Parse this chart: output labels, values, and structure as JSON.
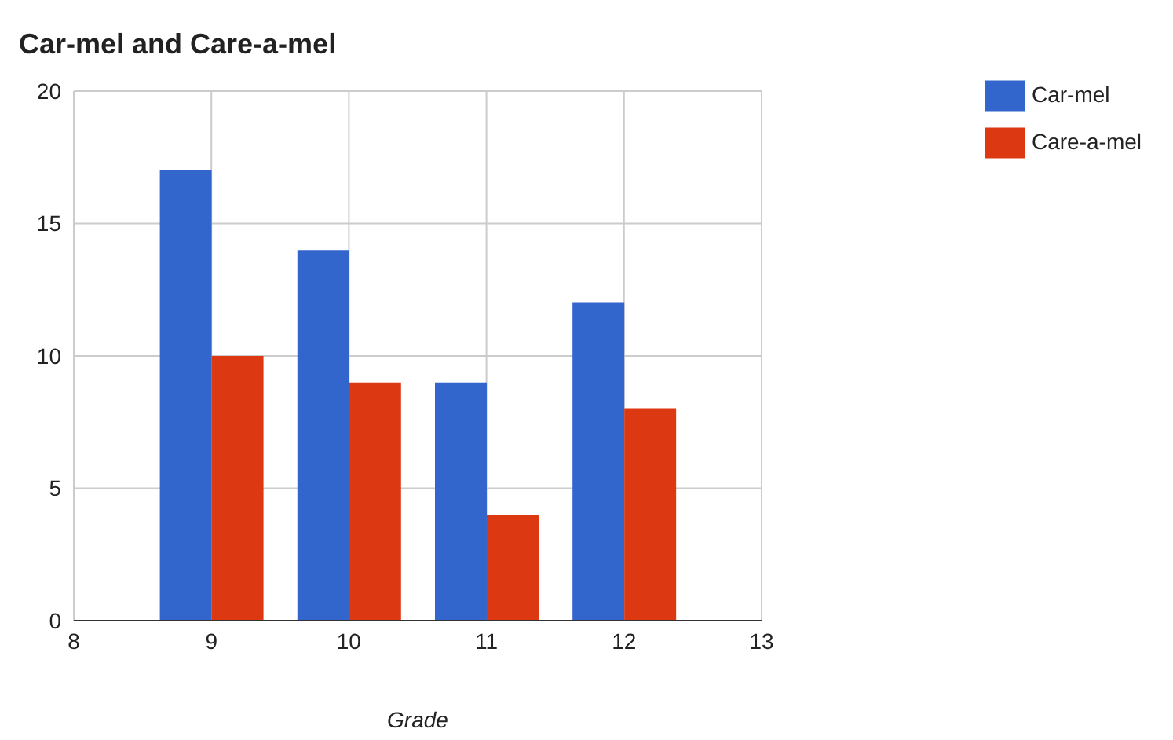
{
  "chart_data": {
    "type": "bar",
    "title": "Car-mel and Care-a-mel",
    "xlabel": "Grade",
    "x": [
      9,
      10,
      11,
      12
    ],
    "xlim": [
      8,
      13
    ],
    "xticks": [
      8,
      9,
      10,
      11,
      12,
      13
    ],
    "ylim": [
      0,
      20
    ],
    "yticks": [
      0,
      5,
      10,
      15,
      20
    ],
    "grid": true,
    "legend": "top right",
    "series": [
      {
        "name": "Car-mel",
        "color": "#3366cc",
        "values": [
          17,
          14,
          9,
          12
        ]
      },
      {
        "name": "Care-a-mel",
        "color": "#dc3912",
        "values": [
          10,
          9,
          4,
          8
        ]
      }
    ]
  }
}
